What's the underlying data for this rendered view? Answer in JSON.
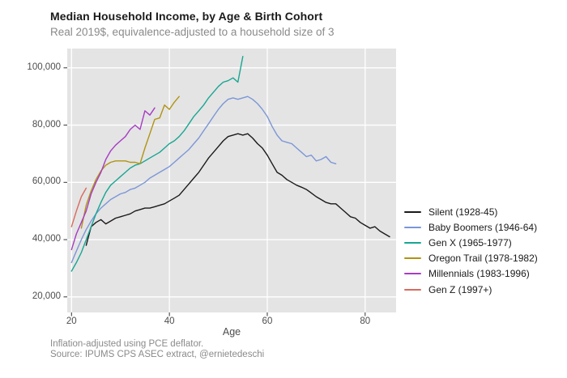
{
  "chart_data": {
    "type": "line",
    "title": "Median Household Income, by Age & Birth Cohort",
    "subtitle": "Real 2019$, equivalence-adjusted to a household size of 3",
    "xlabel": "Age",
    "ylabel": "",
    "caption": {
      "note": "Inflation-adjusted using PCE deflator.",
      "source": "Source: IPUMS CPS ASEC extract, @ernietedeschi"
    },
    "x_ticks": [
      20,
      40,
      60,
      80
    ],
    "y_ticks": [
      20000,
      40000,
      60000,
      80000,
      100000
    ],
    "y_tick_labels": [
      "20,000",
      "40,000",
      "60,000",
      "80,000",
      "100,000"
    ],
    "xlim": [
      19,
      87
    ],
    "ylim": [
      14500,
      106700
    ],
    "grid": true,
    "legend_position": "right",
    "panel_bg": "#e4e4e4",
    "grid_color": "#ffffff",
    "tick_color": "#333333",
    "series": [
      {
        "name": "silent",
        "label": "Silent (1928-45)",
        "color": "#1a1a1a",
        "start_age": 23,
        "values": [
          38000,
          44500,
          46000,
          47000,
          45500,
          46500,
          47500,
          48000,
          48500,
          49000,
          50000,
          50500,
          51000,
          51000,
          51500,
          52000,
          52500,
          53500,
          54500,
          55500,
          57500,
          59500,
          61500,
          63500,
          66000,
          68500,
          70500,
          72500,
          74500,
          76000,
          76500,
          77000,
          76500,
          77000,
          75500,
          73500,
          72000,
          69500,
          66500,
          63500,
          62500,
          61000,
          60000,
          59000,
          58300,
          57500,
          56300,
          55000,
          54000,
          53000,
          52500,
          52500,
          51000,
          49500,
          48000,
          47500,
          46000,
          45000,
          44000,
          44500,
          43000,
          42000,
          41000
        ]
      },
      {
        "name": "baby-boomers",
        "label": "Baby Boomers (1946-64)",
        "color": "#7b96d8",
        "start_age": 20,
        "values": [
          32000,
          36000,
          40000,
          43500,
          46500,
          49000,
          51000,
          52500,
          54000,
          55000,
          56000,
          56500,
          57500,
          58000,
          59000,
          60000,
          61500,
          62500,
          63500,
          64500,
          65500,
          67000,
          68500,
          70000,
          71500,
          73500,
          75500,
          78000,
          80500,
          83000,
          85500,
          87500,
          89000,
          89500,
          89000,
          89500,
          90000,
          89000,
          87500,
          85500,
          83000,
          79500,
          76500,
          74500,
          74000,
          73500,
          72000,
          70500,
          69000,
          69500,
          67500,
          68000,
          69000,
          67000,
          66500
        ]
      },
      {
        "name": "gen-x",
        "label": "Gen X (1965-1977)",
        "color": "#17a692",
        "start_age": 20,
        "values": [
          29000,
          32000,
          35500,
          40000,
          44500,
          49000,
          53000,
          56500,
          59000,
          60500,
          62000,
          63500,
          65000,
          66000,
          66500,
          67500,
          68500,
          69500,
          70500,
          72000,
          73500,
          74500,
          76000,
          78000,
          80500,
          83000,
          85000,
          87000,
          89500,
          91500,
          93500,
          95000,
          95500,
          96500,
          95000,
          104000
        ]
      },
      {
        "name": "oregon-trail",
        "label": "Oregon Trail (1978-1982)",
        "color": "#b09313",
        "start_age": 22,
        "values": [
          44000,
          52000,
          57000,
          61000,
          64000,
          66000,
          67000,
          67500,
          67500,
          67500,
          67000,
          67000,
          66500,
          72000,
          77000,
          82000,
          82500,
          87000,
          85500,
          88000,
          90000
        ]
      },
      {
        "name": "millennials",
        "label": "Millennials (1983-1996)",
        "color": "#a73cc4",
        "start_age": 20,
        "values": [
          36500,
          42000,
          46000,
          50000,
          56000,
          60000,
          63500,
          68000,
          71000,
          73000,
          74500,
          76000,
          78500,
          80000,
          78500,
          85000,
          83500,
          86000
        ]
      },
      {
        "name": "gen-z",
        "label": "Gen Z (1997+)",
        "color": "#d96a5f",
        "start_age": 20,
        "values": [
          44500,
          50000,
          55000,
          58000
        ]
      }
    ]
  }
}
